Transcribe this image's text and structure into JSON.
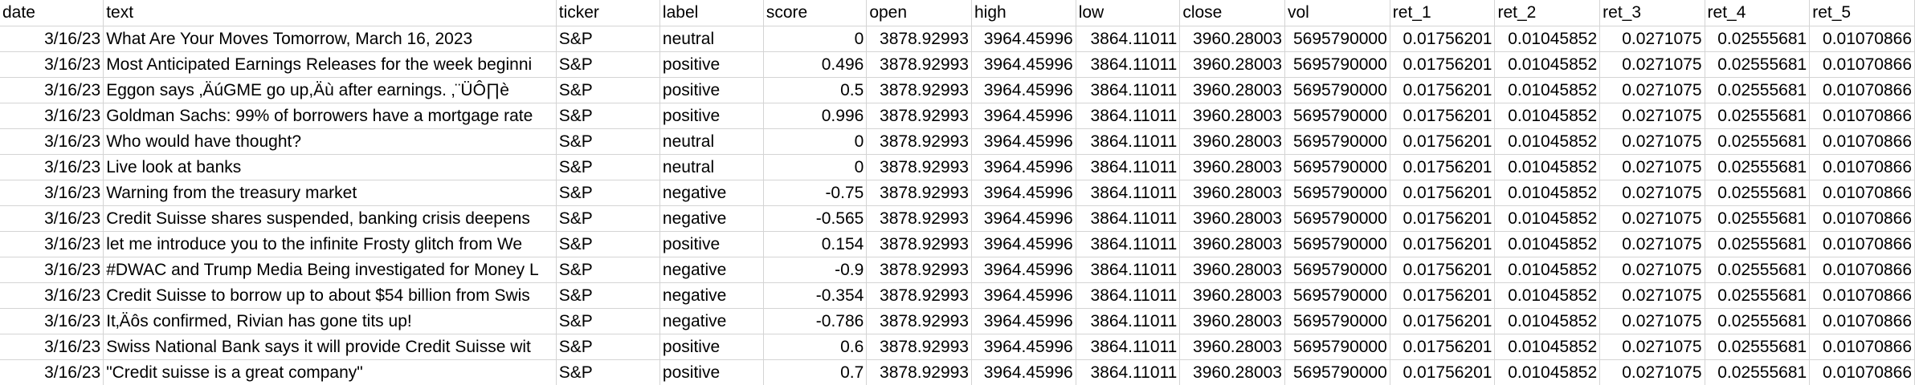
{
  "sheet": {
    "columns": [
      {
        "key": "date",
        "label": "date",
        "width": 130,
        "align": "num"
      },
      {
        "key": "text",
        "label": "text",
        "width": 564,
        "align": "txt"
      },
      {
        "key": "ticker",
        "label": "ticker",
        "width": 131,
        "align": "txt"
      },
      {
        "key": "label",
        "label": "label",
        "width": 130,
        "align": "txt"
      },
      {
        "key": "score",
        "label": "score",
        "width": 130,
        "align": "num"
      },
      {
        "key": "open",
        "label": "open",
        "width": 131,
        "align": "num"
      },
      {
        "key": "high",
        "label": "high",
        "width": 130,
        "align": "num"
      },
      {
        "key": "low",
        "label": "low",
        "width": 130,
        "align": "num"
      },
      {
        "key": "close",
        "label": "close",
        "width": 131,
        "align": "num"
      },
      {
        "key": "vol",
        "label": "vol",
        "width": 131,
        "align": "num"
      },
      {
        "key": "ret_1",
        "label": "ret_1",
        "width": 131,
        "align": "num"
      },
      {
        "key": "ret_2",
        "label": "ret_2",
        "width": 131,
        "align": "num"
      },
      {
        "key": "ret_3",
        "label": "ret_3",
        "width": 131,
        "align": "num"
      },
      {
        "key": "ret_4",
        "label": "ret_4",
        "width": 131,
        "align": "num"
      },
      {
        "key": "ret_5",
        "label": "ret_5",
        "width": 131,
        "align": "num"
      }
    ],
    "rows": [
      [
        "3/16/23",
        "What Are Your Moves Tomorrow, March 16, 2023",
        "S&P",
        "neutral",
        "0",
        "3878.92993",
        "3964.45996",
        "3864.11011",
        "3960.28003",
        "5695790000",
        "0.01756201",
        "0.01045852",
        "0.0271075",
        "0.02555681",
        "0.01070866"
      ],
      [
        "3/16/23",
        "Most Anticipated Earnings Releases for the week beginni",
        "S&P",
        "positive",
        "0.496",
        "3878.92993",
        "3964.45996",
        "3864.11011",
        "3960.28003",
        "5695790000",
        "0.01756201",
        "0.01045852",
        "0.0271075",
        "0.02555681",
        "0.01070866"
      ],
      [
        "3/16/23",
        "Eggon says ‚ÄúGME go up,Äù after earnings. ‚¨ÜÔ∏è",
        "S&P",
        "positive",
        "0.5",
        "3878.92993",
        "3964.45996",
        "3864.11011",
        "3960.28003",
        "5695790000",
        "0.01756201",
        "0.01045852",
        "0.0271075",
        "0.02555681",
        "0.01070866"
      ],
      [
        "3/16/23",
        "Goldman Sachs: 99% of borrowers have a mortgage rate",
        "S&P",
        "positive",
        "0.996",
        "3878.92993",
        "3964.45996",
        "3864.11011",
        "3960.28003",
        "5695790000",
        "0.01756201",
        "0.01045852",
        "0.0271075",
        "0.02555681",
        "0.01070866"
      ],
      [
        "3/16/23",
        "Who would have thought?",
        "S&P",
        "neutral",
        "0",
        "3878.92993",
        "3964.45996",
        "3864.11011",
        "3960.28003",
        "5695790000",
        "0.01756201",
        "0.01045852",
        "0.0271075",
        "0.02555681",
        "0.01070866"
      ],
      [
        "3/16/23",
        "Live look at banks",
        "S&P",
        "neutral",
        "0",
        "3878.92993",
        "3964.45996",
        "3864.11011",
        "3960.28003",
        "5695790000",
        "0.01756201",
        "0.01045852",
        "0.0271075",
        "0.02555681",
        "0.01070866"
      ],
      [
        "3/16/23",
        "Warning from the treasury market",
        "S&P",
        "negative",
        "-0.75",
        "3878.92993",
        "3964.45996",
        "3864.11011",
        "3960.28003",
        "5695790000",
        "0.01756201",
        "0.01045852",
        "0.0271075",
        "0.02555681",
        "0.01070866"
      ],
      [
        "3/16/23",
        "Credit Suisse shares suspended, banking crisis deepens",
        "S&P",
        "negative",
        "-0.565",
        "3878.92993",
        "3964.45996",
        "3864.11011",
        "3960.28003",
        "5695790000",
        "0.01756201",
        "0.01045852",
        "0.0271075",
        "0.02555681",
        "0.01070866"
      ],
      [
        "3/16/23",
        "let me introduce you to the infinite Frosty glitch from We",
        "S&P",
        "positive",
        "0.154",
        "3878.92993",
        "3964.45996",
        "3864.11011",
        "3960.28003",
        "5695790000",
        "0.01756201",
        "0.01045852",
        "0.0271075",
        "0.02555681",
        "0.01070866"
      ],
      [
        "3/16/23",
        "#DWAC and Trump Media Being investigated for Money L",
        "S&P",
        "negative",
        "-0.9",
        "3878.92993",
        "3964.45996",
        "3864.11011",
        "3960.28003",
        "5695790000",
        "0.01756201",
        "0.01045852",
        "0.0271075",
        "0.02555681",
        "0.01070866"
      ],
      [
        "3/16/23",
        "Credit Suisse to borrow up to about $54 billion from Swis",
        "S&P",
        "negative",
        "-0.354",
        "3878.92993",
        "3964.45996",
        "3864.11011",
        "3960.28003",
        "5695790000",
        "0.01756201",
        "0.01045852",
        "0.0271075",
        "0.02555681",
        "0.01070866"
      ],
      [
        "3/16/23",
        "It‚Äôs confirmed, Rivian has gone tits up!",
        "S&P",
        "negative",
        "-0.786",
        "3878.92993",
        "3964.45996",
        "3864.11011",
        "3960.28003",
        "5695790000",
        "0.01756201",
        "0.01045852",
        "0.0271075",
        "0.02555681",
        "0.01070866"
      ],
      [
        "3/16/23",
        "Swiss National Bank says it will provide Credit Suisse wit",
        "S&P",
        "positive",
        "0.6",
        "3878.92993",
        "3964.45996",
        "3864.11011",
        "3960.28003",
        "5695790000",
        "0.01756201",
        "0.01045852",
        "0.0271075",
        "0.02555681",
        "0.01070866"
      ],
      [
        "3/16/23",
        "\"Credit suisse is a great company\"",
        "S&P",
        "positive",
        "0.7",
        "3878.92993",
        "3964.45996",
        "3864.11011",
        "3960.28003",
        "5695790000",
        "0.01756201",
        "0.01045852",
        "0.0271075",
        "0.02555681",
        "0.01070866"
      ]
    ]
  }
}
